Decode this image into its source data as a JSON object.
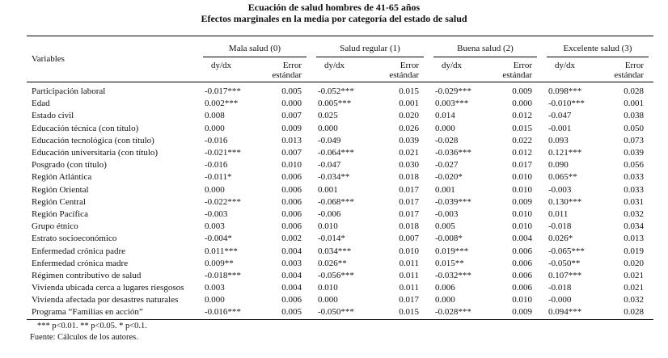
{
  "title": "Ecuación de salud hombres de 41-65 años",
  "subtitle": "Efectos marginales en la media por categoría del estado de salud",
  "header": {
    "variables": "Variables",
    "groups": [
      "Mala salud (0)",
      "Salud regular (1)",
      "Buena salud (2)",
      "Excelente salud (3)"
    ],
    "dydx": "dy/dx",
    "error_line1": "Error",
    "error_line2": "estándar"
  },
  "rows": [
    {
      "var": "Participación laboral",
      "vals": [
        "-0.017***",
        "0.005",
        "-0.052***",
        "0.015",
        "-0.029***",
        "0.009",
        "0.098***",
        "0.028"
      ]
    },
    {
      "var": "Edad",
      "vals": [
        "0.002***",
        "0.000",
        "0.005***",
        "0.001",
        "0.003***",
        "0.000",
        "-0.010***",
        "0.001"
      ]
    },
    {
      "var": "Estado civil",
      "vals": [
        "0.008",
        "0.007",
        "0.025",
        "0.020",
        "0.014",
        "0.012",
        "-0.047",
        "0.038"
      ]
    },
    {
      "var": "Educación técnica (con título)",
      "vals": [
        "0.000",
        "0.009",
        "0.000",
        "0.026",
        "0.000",
        "0.015",
        "-0.001",
        "0.050"
      ]
    },
    {
      "var": "Educación tecnológica (con título)",
      "vals": [
        "-0.016",
        "0.013",
        "-0.049",
        "0.039",
        "-0.028",
        "0.022",
        "0.093",
        "0.073"
      ]
    },
    {
      "var": "Educación universitaria (con título)",
      "vals": [
        "-0.021***",
        "0.007",
        "-0.064***",
        "0.021",
        "-0.036***",
        "0.012",
        "0.121***",
        "0.039"
      ]
    },
    {
      "var": "Posgrado (con título)",
      "vals": [
        "-0.016",
        "0.010",
        "-0.047",
        "0.030",
        "-0.027",
        "0.017",
        "0.090",
        "0.056"
      ]
    },
    {
      "var": "Región Atlántica",
      "vals": [
        "-0.011*",
        "0.006",
        "-0.034**",
        "0.018",
        "-0.020*",
        "0.010",
        "0.065**",
        "0.033"
      ]
    },
    {
      "var": "Región Oriental",
      "vals": [
        "0.000",
        "0.006",
        "0.001",
        "0.017",
        "0.001",
        "0.010",
        "-0.003",
        "0.033"
      ]
    },
    {
      "var": "Región Central",
      "vals": [
        "-0.022***",
        "0.006",
        "-0.068***",
        "0.017",
        "-0.039***",
        "0.009",
        "0.130***",
        "0.031"
      ]
    },
    {
      "var": "Región Pacífica",
      "vals": [
        "-0.003",
        "0.006",
        "-0.006",
        "0.017",
        "-0.003",
        "0.010",
        "0.011",
        "0.032"
      ]
    },
    {
      "var": "Grupo étnico",
      "vals": [
        "0.003",
        "0.006",
        "0.010",
        "0.018",
        "0.005",
        "0.010",
        "-0.018",
        "0.034"
      ]
    },
    {
      "var": "Estrato socioeconómico",
      "vals": [
        "-0.004*",
        "0.002",
        "-0.014*",
        "0.007",
        "-0.008*",
        "0.004",
        "0.026*",
        "0.013"
      ]
    },
    {
      "var": "Enfermedad crónica padre",
      "vals": [
        "0.011***",
        "0.004",
        "0.034***",
        "0.010",
        "0.019***",
        "0.006",
        "-0.065***",
        "0.019"
      ]
    },
    {
      "var": "Enfermedad crónica madre",
      "vals": [
        "0.009**",
        "0.003",
        "0.026**",
        "0.011",
        "0.015**",
        "0.006",
        "-0.050**",
        "0.020"
      ]
    },
    {
      "var": "Régimen contributivo de salud",
      "vals": [
        "-0.018***",
        "0.004",
        "-0.056***",
        "0.011",
        "-0.032***",
        "0.006",
        "0.107***",
        "0.021"
      ]
    },
    {
      "var": "Vivienda ubicada cerca a lugares riesgosos",
      "vals": [
        "0.003",
        "0.004",
        "0.010",
        "0.011",
        "0.006",
        "0.006",
        "-0.018",
        "0.021"
      ]
    },
    {
      "var": "Vivienda afectada por desastres naturales",
      "vals": [
        "0.000",
        "0.006",
        "0.000",
        "0.017",
        "0.000",
        "0.010",
        "-0.000",
        "0.032"
      ]
    },
    {
      "var": "Programa “Familias en acción”",
      "vals": [
        "-0.016***",
        "0.005",
        "-0.050***",
        "0.015",
        "-0.028***",
        "0.009",
        "0.094***",
        "0.028"
      ]
    }
  ],
  "notes": [
    "*** p<0.01. ** p<0.05. * p<0.1.",
    "Fuente: Cálculos de los autores."
  ]
}
